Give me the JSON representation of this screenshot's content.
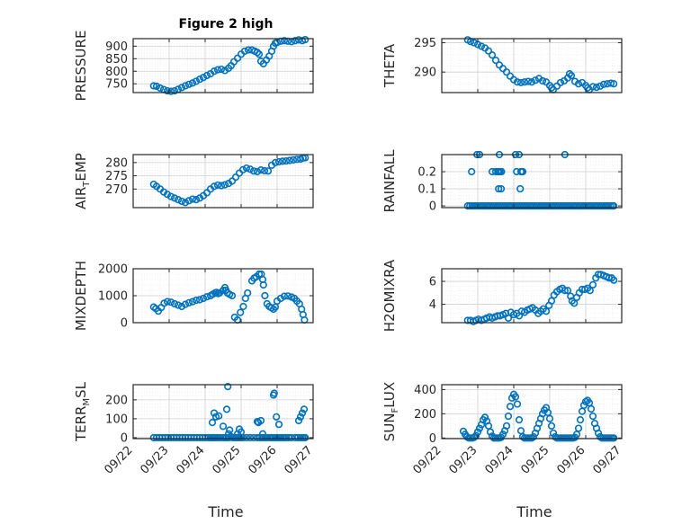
{
  "figure_title": "Figure 2 high",
  "x_axis_label": "Time",
  "x_tick_labels": [
    "09/22",
    "09/23",
    "09/24",
    "09/25",
    "09/26",
    "09/27"
  ],
  "colors": {
    "series": "#0072BD",
    "grid": "#d9d9d9",
    "axes": "#262626"
  },
  "chart_data": [
    {
      "type": "scatter",
      "id": "pressure",
      "marker": "circle-open",
      "grid": true,
      "ylabel": {
        "main": "PRESSURE",
        "sub": "",
        "tail": ""
      },
      "xlim": [
        0,
        5
      ],
      "ylim": [
        715,
        930
      ],
      "yticks": [
        750,
        800,
        850,
        900
      ],
      "ytick_labels": [
        "750",
        "800",
        "850",
        "900"
      ],
      "x": [
        0.57,
        0.65,
        0.75,
        0.85,
        0.95,
        1.05,
        1.15,
        1.25,
        1.35,
        1.45,
        1.55,
        1.65,
        1.75,
        1.85,
        1.95,
        2.05,
        2.15,
        2.25,
        2.35,
        2.45,
        2.55,
        2.65,
        2.72,
        2.8,
        2.9,
        3.0,
        3.1,
        3.2,
        3.3,
        3.38,
        3.45,
        3.5,
        3.55,
        3.62,
        3.7,
        3.78,
        3.85,
        3.9,
        3.95,
        4.0,
        4.1,
        4.2,
        4.3,
        4.4,
        4.5,
        4.6,
        4.7,
        4.78
      ],
      "y": [
        742,
        740,
        733,
        727,
        722,
        720,
        722,
        728,
        735,
        742,
        748,
        753,
        760,
        768,
        775,
        783,
        790,
        800,
        806,
        808,
        803,
        812,
        822,
        838,
        852,
        868,
        880,
        885,
        885,
        880,
        875,
        868,
        840,
        830,
        845,
        860,
        880,
        900,
        912,
        915,
        920,
        922,
        920,
        918,
        922,
        925,
        922,
        926
      ]
    },
    {
      "type": "scatter",
      "id": "theta",
      "marker": "circle-open",
      "grid": true,
      "ylabel": {
        "main": "THETA",
        "sub": "",
        "tail": ""
      },
      "xlim": [
        0,
        5
      ],
      "ylim": [
        286.5,
        295.7
      ],
      "yticks": [
        290,
        295
      ],
      "ytick_labels": [
        "290",
        "295"
      ],
      "x": [
        0.72,
        0.8,
        0.9,
        1.0,
        1.1,
        1.2,
        1.3,
        1.4,
        1.5,
        1.6,
        1.7,
        1.8,
        1.9,
        2.0,
        2.1,
        2.2,
        2.3,
        2.4,
        2.5,
        2.6,
        2.7,
        2.8,
        2.9,
        3.0,
        3.05,
        3.1,
        3.2,
        3.3,
        3.4,
        3.5,
        3.55,
        3.6,
        3.7,
        3.8,
        3.9,
        4.0,
        4.05,
        4.1,
        4.2,
        4.3,
        4.4,
        4.5,
        4.6,
        4.7,
        4.78
      ],
      "y": [
        295.5,
        295.2,
        295.0,
        294.7,
        294.4,
        294.1,
        293.6,
        292.9,
        292.0,
        291.2,
        290.6,
        290.0,
        289.3,
        288.7,
        288.3,
        288.2,
        288.3,
        288.4,
        288.3,
        288.6,
        288.9,
        288.5,
        288.3,
        287.7,
        287.3,
        287.0,
        287.6,
        288.2,
        288.5,
        289.0,
        289.7,
        289.4,
        288.4,
        288.0,
        288.2,
        287.7,
        287.3,
        287.0,
        287.5,
        287.4,
        287.6,
        287.9,
        288.0,
        288.1,
        288.0
      ]
    },
    {
      "type": "scatter",
      "id": "air_temp",
      "marker": "circle-open",
      "grid": true,
      "ylabel": {
        "main": "AIR",
        "sub": "T",
        "tail": "EMP"
      },
      "xlim": [
        0,
        5
      ],
      "ylim": [
        263,
        283
      ],
      "yticks": [
        270,
        275,
        280
      ],
      "ytick_labels": [
        "270",
        "275",
        "280"
      ],
      "x": [
        0.57,
        0.65,
        0.75,
        0.85,
        0.95,
        1.05,
        1.15,
        1.25,
        1.35,
        1.45,
        1.55,
        1.65,
        1.75,
        1.85,
        1.95,
        2.05,
        2.15,
        2.25,
        2.35,
        2.45,
        2.55,
        2.65,
        2.75,
        2.85,
        2.95,
        3.05,
        3.15,
        3.25,
        3.35,
        3.45,
        3.55,
        3.65,
        3.75,
        3.85,
        3.95,
        4.05,
        4.15,
        4.25,
        4.35,
        4.45,
        4.55,
        4.65,
        4.72,
        4.78
      ],
      "y": [
        271.8,
        271.0,
        270.0,
        268.9,
        268.0,
        267.2,
        266.6,
        266.0,
        265.4,
        264.9,
        265.6,
        266.2,
        266.0,
        266.6,
        267.5,
        268.6,
        270.0,
        271.0,
        271.5,
        271.3,
        271.6,
        272.1,
        273.0,
        274.5,
        276.0,
        277.3,
        277.9,
        277.5,
        276.8,
        276.6,
        277.2,
        276.9,
        276.8,
        279.0,
        280.0,
        280.3,
        280.5,
        280.6,
        280.8,
        281.0,
        281.2,
        281.3,
        281.7,
        281.8
      ]
    },
    {
      "type": "scatter",
      "id": "rainfall",
      "marker": "circle-open",
      "grid": true,
      "ylabel": {
        "main": "RAINFALL",
        "sub": "",
        "tail": ""
      },
      "xlim": [
        0,
        5
      ],
      "ylim": [
        -0.01,
        0.3
      ],
      "yticks": [
        0,
        0.1,
        0.2
      ],
      "ytick_labels": [
        "0",
        "0.1",
        "0.2"
      ],
      "x": [
        0.72,
        0.78,
        0.84,
        0.9,
        0.96,
        1.02,
        1.08,
        1.14,
        1.2,
        1.26,
        1.32,
        1.38,
        1.44,
        1.5,
        1.56,
        1.62,
        1.68,
        1.74,
        1.8,
        1.86,
        1.92,
        1.98,
        2.04,
        2.1,
        2.16,
        2.22,
        2.28,
        2.34,
        2.4,
        2.46,
        2.52,
        2.58,
        2.64,
        2.7,
        2.76,
        2.82,
        2.88,
        2.94,
        3.0,
        3.06,
        3.12,
        3.18,
        3.24,
        3.3,
        3.36,
        3.42,
        3.48,
        3.54,
        3.6,
        3.66,
        3.72,
        3.78,
        3.84,
        3.9,
        3.96,
        4.02,
        4.08,
        4.14,
        4.2,
        4.26,
        4.32,
        4.38,
        4.44,
        4.5,
        4.56,
        4.62,
        4.68,
        4.74,
        4.78,
        0.83,
        0.98,
        1.05,
        1.4,
        1.5,
        1.56,
        1.57,
        1.59,
        1.62,
        1.66,
        1.58,
        1.65,
        2.05,
        2.08,
        2.15,
        2.2,
        2.18,
        2.22,
        2.25,
        3.42,
        1.6
      ],
      "y": [
        0,
        0,
        0,
        0,
        0,
        0,
        0,
        0,
        0,
        0,
        0,
        0,
        0,
        0,
        0,
        0,
        0,
        0,
        0,
        0,
        0,
        0,
        0,
        0,
        0,
        0,
        0,
        0,
        0,
        0,
        0,
        0,
        0,
        0,
        0,
        0,
        0,
        0,
        0,
        0,
        0,
        0,
        0,
        0,
        0,
        0,
        0,
        0,
        0,
        0,
        0,
        0,
        0,
        0,
        0,
        0,
        0,
        0,
        0,
        0,
        0,
        0,
        0,
        0,
        0,
        0,
        0,
        0,
        0,
        0.2,
        0.3,
        0.3,
        0.2,
        0.2,
        0.2,
        0.2,
        0.2,
        0.2,
        0.2,
        0.1,
        0.1,
        0.3,
        0.2,
        0.3,
        0.2,
        0.1,
        0.2,
        0.2,
        0.3,
        0.3
      ]
    },
    {
      "type": "scatter",
      "id": "mixdepth",
      "marker": "circle-open",
      "grid": true,
      "ylabel": {
        "main": "MIXDEPTH",
        "sub": "",
        "tail": ""
      },
      "xlim": [
        0,
        5
      ],
      "ylim": [
        0,
        2000
      ],
      "yticks": [
        0,
        1000,
        2000
      ],
      "ytick_labels": [
        "0",
        "1000",
        "2000"
      ],
      "x": [
        0.57,
        0.63,
        0.7,
        0.78,
        0.86,
        0.95,
        1.05,
        1.15,
        1.25,
        1.35,
        1.45,
        1.55,
        1.65,
        1.75,
        1.85,
        1.95,
        2.05,
        2.15,
        2.22,
        2.28,
        2.32,
        2.36,
        2.4,
        2.5,
        2.55,
        2.58,
        2.62,
        2.68,
        2.75,
        2.82,
        2.9,
        2.98,
        3.06,
        3.12,
        3.18,
        3.3,
        3.36,
        3.42,
        3.5,
        3.56,
        3.6,
        3.62,
        3.66,
        3.72,
        3.78,
        3.84,
        3.9,
        3.95,
        4.0,
        4.1,
        4.2,
        4.3,
        4.4,
        4.48,
        4.55,
        4.62,
        4.68,
        4.72,
        4.76
      ],
      "y": [
        580,
        520,
        430,
        560,
        720,
        780,
        760,
        700,
        650,
        600,
        680,
        740,
        780,
        830,
        850,
        900,
        960,
        1000,
        1060,
        1110,
        1120,
        1080,
        1100,
        1200,
        1300,
        1200,
        1100,
        1050,
        1000,
        200,
        100,
        380,
        600,
        900,
        1100,
        1550,
        1650,
        1700,
        1800,
        1800,
        1600,
        1400,
        1000,
        700,
        600,
        550,
        500,
        580,
        800,
        900,
        980,
        990,
        950,
        900,
        800,
        700,
        500,
        300,
        100
      ]
    },
    {
      "type": "scatter",
      "id": "h2omixra",
      "marker": "circle-open",
      "grid": true,
      "ylabel": {
        "main": "H2OMIXRA",
        "sub": "",
        "tail": ""
      },
      "xlim": [
        0,
        5
      ],
      "ylim": [
        2.4,
        7.1
      ],
      "yticks": [
        4,
        6
      ],
      "ytick_labels": [
        "4",
        "6"
      ],
      "x": [
        0.72,
        0.8,
        0.88,
        0.95,
        1.02,
        1.1,
        1.18,
        1.25,
        1.33,
        1.4,
        1.48,
        1.55,
        1.62,
        1.7,
        1.78,
        1.85,
        1.92,
        2.0,
        2.08,
        2.15,
        2.22,
        2.3,
        2.38,
        2.45,
        2.52,
        2.6,
        2.68,
        2.75,
        2.82,
        2.9,
        2.98,
        3.05,
        3.12,
        3.2,
        3.28,
        3.35,
        3.42,
        3.5,
        3.58,
        3.62,
        3.68,
        3.75,
        3.82,
        3.9,
        3.98,
        4.05,
        4.12,
        4.2,
        4.28,
        4.35,
        4.42,
        4.5,
        4.58,
        4.65,
        4.72,
        4.78
      ],
      "y": [
        2.6,
        2.6,
        2.5,
        2.6,
        2.7,
        2.6,
        2.7,
        2.8,
        2.9,
        2.8,
        2.9,
        3.0,
        3.0,
        3.1,
        3.2,
        2.8,
        3.3,
        3.1,
        3.2,
        3.0,
        3.4,
        3.3,
        3.5,
        3.6,
        3.7,
        3.5,
        3.2,
        3.4,
        3.6,
        3.4,
        3.9,
        4.3,
        4.8,
        5.1,
        5.3,
        5.4,
        5.2,
        5.2,
        4.7,
        4.3,
        4.1,
        4.6,
        5.0,
        5.3,
        5.3,
        5.4,
        5.2,
        5.7,
        6.3,
        6.6,
        6.6,
        6.5,
        6.4,
        6.3,
        6.3,
        6.1
      ]
    },
    {
      "type": "scatter",
      "id": "terr_msl",
      "marker": "circle-open",
      "grid": true,
      "ylabel": {
        "main": "TERR",
        "sub": "M",
        "tail": "SL"
      },
      "xlim": [
        0,
        5
      ],
      "ylim": [
        -5,
        280
      ],
      "yticks": [
        0,
        100,
        200
      ],
      "ytick_labels": [
        "0",
        "100",
        "200"
      ],
      "x": [
        0.57,
        0.65,
        0.73,
        0.81,
        0.89,
        0.97,
        1.05,
        1.13,
        1.21,
        1.29,
        1.37,
        1.45,
        1.53,
        1.61,
        1.69,
        1.77,
        1.85,
        1.93,
        2.01,
        2.09,
        2.15,
        2.2,
        2.23,
        2.26,
        2.3,
        2.35,
        2.42,
        2.5,
        2.55,
        2.6,
        2.65,
        2.68,
        2.72,
        2.76,
        2.8,
        2.85,
        2.9,
        2.95,
        3.0,
        3.05,
        3.15,
        3.25,
        3.35,
        3.45,
        3.48,
        3.52,
        3.58,
        3.62,
        3.68,
        3.72,
        3.8,
        3.85,
        3.9,
        3.95,
        4.0,
        4.05,
        4.1,
        4.15,
        4.2,
        4.25,
        4.32,
        4.4,
        4.5,
        4.58,
        4.65,
        4.7,
        4.75,
        4.78
      ],
      "y": [
        0,
        0,
        0,
        0,
        0,
        0,
        0,
        0,
        0,
        0,
        0,
        0,
        0,
        0,
        0,
        0,
        0,
        0,
        0,
        0,
        0,
        0,
        0,
        0,
        0,
        0,
        0,
        0,
        0,
        0,
        0,
        40,
        5,
        0,
        0,
        0,
        0,
        0,
        0,
        0,
        0,
        0,
        0,
        0,
        80,
        0,
        0,
        0,
        0,
        0,
        0,
        0,
        0,
        0,
        0,
        0,
        0,
        0,
        0,
        0,
        0,
        0,
        0,
        0,
        0,
        0,
        0,
        0
      ],
      "peaks_x": [
        2.2,
        2.25,
        2.3,
        2.38,
        2.5,
        2.6,
        2.63,
        2.65,
        2.9,
        2.95,
        3.0,
        3.45,
        3.55,
        3.6,
        3.9,
        3.92,
        3.98,
        4.05,
        4.6,
        4.65,
        4.7,
        4.75
      ],
      "peaks_y": [
        80,
        130,
        110,
        115,
        60,
        150,
        270,
        20,
        20,
        45,
        30,
        85,
        90,
        20,
        225,
        235,
        110,
        70,
        90,
        110,
        130,
        150
      ]
    },
    {
      "type": "scatter",
      "id": "sun_flux",
      "marker": "circle-open",
      "grid": true,
      "ylabel": {
        "main": "SUN",
        "sub": "F",
        "tail": "LUX"
      },
      "xlim": [
        0,
        5
      ],
      "ylim": [
        -5,
        440
      ],
      "yticks": [
        0,
        200,
        400
      ],
      "ytick_labels": [
        "0",
        "200",
        "400"
      ],
      "x": [
        0.6,
        0.65,
        0.7,
        0.75,
        0.8,
        0.85,
        0.9,
        0.95,
        1.0,
        1.05,
        1.1,
        1.15,
        1.2,
        1.25,
        1.3,
        1.35,
        1.4,
        1.45,
        1.5,
        1.55,
        1.6,
        1.65,
        1.7,
        1.75,
        1.8,
        1.85,
        1.9,
        1.95,
        2.0,
        2.05,
        2.1,
        2.15,
        2.2,
        2.25,
        2.3,
        2.35,
        2.4,
        2.45,
        2.5,
        2.55,
        2.6,
        2.65,
        2.7,
        2.75,
        2.8,
        2.85,
        2.9,
        2.95,
        3.0,
        3.05,
        3.1,
        3.15,
        3.2,
        3.25,
        3.3,
        3.35,
        3.4,
        3.45,
        3.5,
        3.55,
        3.6,
        3.65,
        3.7,
        3.75,
        3.8,
        3.85,
        3.9,
        3.95,
        4.0,
        4.05,
        4.1,
        4.15,
        4.2,
        4.25,
        4.3,
        4.35,
        4.4,
        4.45,
        4.5,
        4.55,
        4.6,
        4.65,
        4.7,
        4.75,
        4.78
      ],
      "y": [
        55,
        30,
        10,
        0,
        0,
        0,
        5,
        20,
        50,
        80,
        110,
        150,
        170,
        140,
        100,
        50,
        15,
        0,
        0,
        0,
        0,
        5,
        30,
        60,
        100,
        180,
        260,
        330,
        360,
        340,
        280,
        150,
        60,
        10,
        0,
        0,
        0,
        0,
        0,
        10,
        40,
        80,
        120,
        160,
        200,
        230,
        250,
        210,
        160,
        100,
        40,
        10,
        0,
        0,
        0,
        0,
        0,
        0,
        0,
        0,
        0,
        0,
        5,
        30,
        80,
        150,
        220,
        270,
        300,
        310,
        290,
        240,
        180,
        120,
        80,
        40,
        10,
        0,
        0,
        0,
        0,
        0,
        0,
        0,
        0
      ]
    }
  ]
}
